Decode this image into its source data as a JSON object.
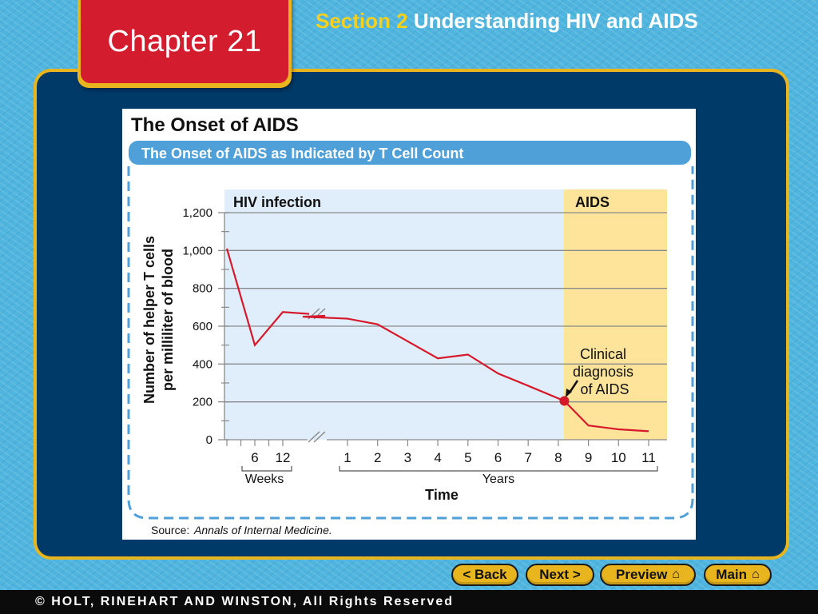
{
  "header": {
    "chapter": "Chapter 21",
    "section_label": "Section 2",
    "section_title": "Understanding HIV and AIDS"
  },
  "figure": {
    "title": "The Onset of AIDS",
    "banner": "The Onset of AIDS as Indicated by T Cell Count",
    "source_label": "Source:",
    "source_text": "Annals of Internal Medicine."
  },
  "chart_data": {
    "type": "line",
    "title": "The Onset of AIDS as Indicated by T Cell Count",
    "ylabel_line1": "Number of helper T cells",
    "ylabel_line2": "per milliliter of blood",
    "xlabel": "Time",
    "ylim": [
      0,
      1200
    ],
    "yticks": [
      0,
      200,
      400,
      600,
      800,
      1000,
      1200
    ],
    "ytick_labels": [
      "0",
      "200",
      "400",
      "600",
      "800",
      "1,000",
      "1,200"
    ],
    "x_groups": [
      {
        "label": "Weeks",
        "ticks": [
          "6",
          "12"
        ]
      },
      {
        "label": "Years",
        "ticks": [
          "1",
          "2",
          "3",
          "4",
          "5",
          "6",
          "7",
          "8",
          "9",
          "10",
          "11"
        ]
      }
    ],
    "regions": [
      {
        "label": "HIV infection",
        "color": "#dfeefa"
      },
      {
        "label": "AIDS",
        "color": "#fde49a"
      }
    ],
    "series": [
      {
        "color": "#d7182a",
        "points": [
          {
            "x": "0 weeks",
            "y": 1010
          },
          {
            "x": "6 weeks",
            "y": 500
          },
          {
            "x": "12 weeks",
            "y": 675
          },
          {
            "x": "0.5 years",
            "y": 650
          },
          {
            "x": "1 year",
            "y": 640
          },
          {
            "x": "2 years",
            "y": 610
          },
          {
            "x": "4 years",
            "y": 430
          },
          {
            "x": "5 years",
            "y": 450
          },
          {
            "x": "6 years",
            "y": 350
          },
          {
            "x": "7 years",
            "y": 285
          },
          {
            "x": "8.2 years",
            "y": 205
          },
          {
            "x": "9 years",
            "y": 75
          },
          {
            "x": "10 years",
            "y": 55
          },
          {
            "x": "11 years",
            "y": 45
          }
        ]
      }
    ],
    "annotation": {
      "line1": "Clinical",
      "line2": "diagnosis",
      "line3": "of AIDS",
      "point": {
        "x": "8.2 years",
        "y": 205
      }
    }
  },
  "nav": {
    "back": "< Back",
    "next": "Next >",
    "preview": "Preview",
    "main": "Main"
  },
  "footer": {
    "text": "© HOLT, RINEHART AND WINSTON, All Rights Reserved"
  },
  "colors": {
    "background": "#4fb4de",
    "panel": "#003a69",
    "tab_red": "#d31c2e",
    "gold": "#e8b51e",
    "line": "#d7182a"
  }
}
